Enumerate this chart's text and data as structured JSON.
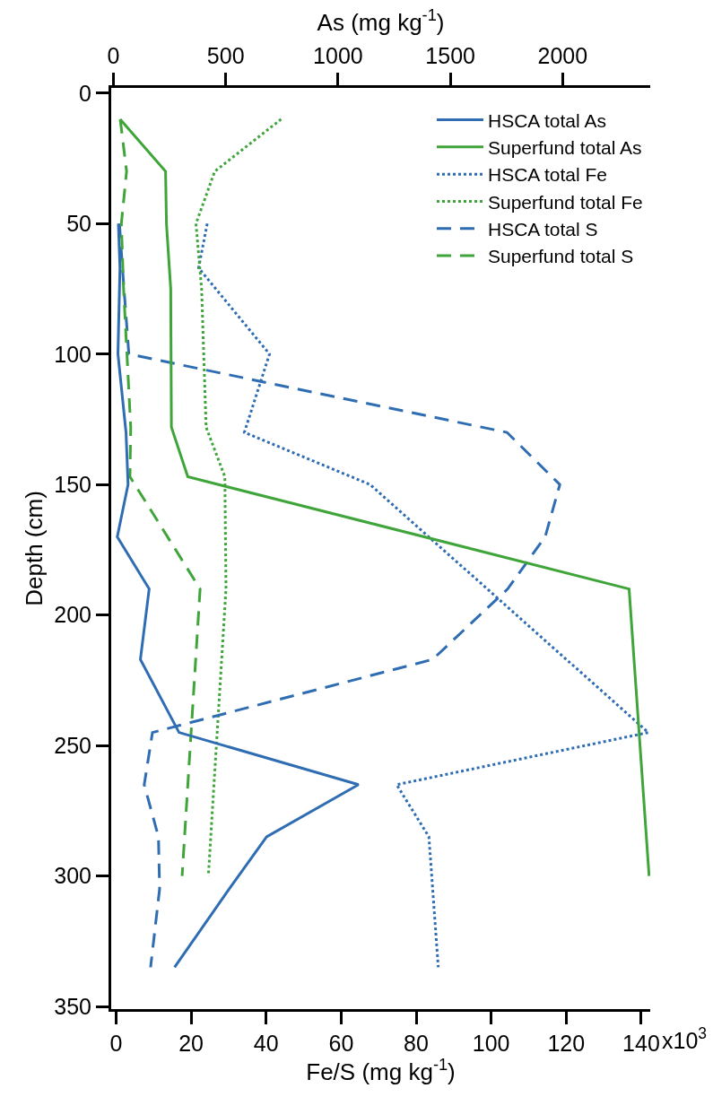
{
  "chart_data": {
    "type": "line",
    "xlabel": "Fe/S (mg kg$^{-1}$)",
    "x2label": "As (mg kg$^{-1}$)",
    "ylabel": "Depth (cm)",
    "annotations": [
      "x10$^{3}$"
    ],
    "xlim": [
      -1.3,
      142.4
    ],
    "xticks": [
      0,
      20,
      40,
      60,
      80,
      100,
      120,
      140
    ],
    "x2lim": [
      -10,
      2390
    ],
    "x2ticks": [
      0,
      500,
      1000,
      1500,
      2000
    ],
    "ylim": [
      351,
      -2
    ],
    "yticks": [
      0,
      50,
      100,
      150,
      200,
      250,
      300,
      350
    ],
    "grid": false,
    "legend": "top right",
    "series": [
      {
        "name": "HSCA total As",
        "color": "#2f6db3",
        "line_style": "solid",
        "axis": "x2",
        "x": [
          22,
          29,
          20,
          56,
          65,
          17,
          159,
          120,
          292,
          1091,
          682,
          515,
          272
        ],
        "values": [
          50,
          67,
          100,
          130,
          150,
          170,
          190,
          217,
          245,
          265,
          285,
          305,
          335
        ]
      },
      {
        "name": "Superfund total As",
        "color": "#3fa53a",
        "line_style": "solid",
        "axis": "x2",
        "x": [
          30,
          232,
          236,
          255,
          258,
          331,
          2296,
          2385
        ],
        "values": [
          10,
          30,
          50,
          75,
          128,
          147,
          190,
          300
        ]
      },
      {
        "name": "HSCA total Fe",
        "color": "#2f6db3",
        "line_style": "dotted",
        "x": [
          24.3,
          22.0,
          40.9,
          34.2,
          67.7,
          141.9,
          74.8,
          83.4,
          85.9
        ],
        "values": [
          50,
          67,
          100,
          130,
          150,
          245,
          265,
          285,
          335
        ]
      },
      {
        "name": "Superfund total Fe",
        "color": "#3fa53a",
        "line_style": "dotted",
        "x": [
          44.0,
          26.3,
          21.3,
          22.8,
          24.0,
          29.0,
          29.3,
          24.6
        ],
        "values": [
          10,
          30,
          50,
          75,
          128,
          147,
          190,
          300
        ]
      },
      {
        "name": "HSCA total S",
        "color": "#2f6db3",
        "line_style": "dashed",
        "x": [
          0.9,
          1.7,
          3.4,
          104.2,
          118.3,
          114.4,
          104.4,
          84.4,
          9.7,
          7.5,
          11.3,
          11.6,
          9.2
        ],
        "values": [
          50,
          67,
          100,
          130,
          150,
          170,
          190,
          217,
          245,
          265,
          285,
          305,
          335
        ]
      },
      {
        "name": "Superfund total S",
        "color": "#3fa53a",
        "line_style": "dashed",
        "x": [
          1.1,
          2.8,
          1.4,
          2.0,
          3.9,
          3.7,
          22.4,
          17.6
        ],
        "values": [
          10,
          30,
          50,
          75,
          128,
          147,
          190,
          300
        ]
      }
    ]
  }
}
